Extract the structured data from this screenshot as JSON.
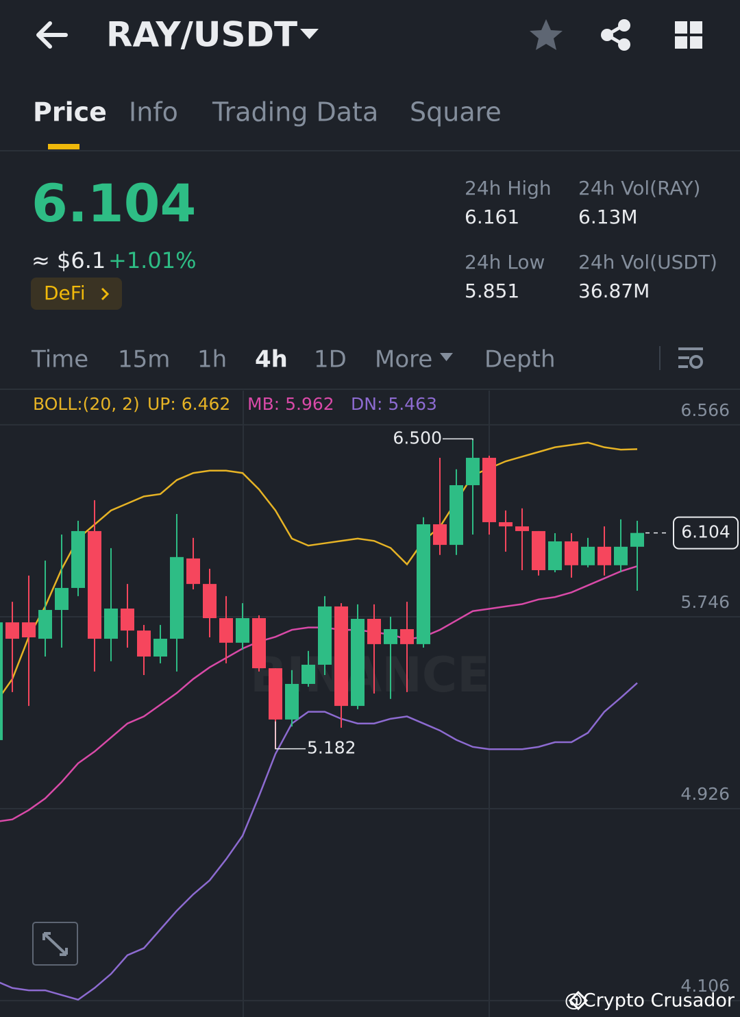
{
  "header": {
    "pair": "RAY/USDT"
  },
  "tabs": [
    "Price",
    "Info",
    "Trading Data",
    "Square"
  ],
  "price": {
    "last": "6.104",
    "fiat": "≈ $6.1",
    "change": "+1.01%",
    "tag": "DeFi"
  },
  "stats": [
    {
      "label": "24h High",
      "value": "6.161"
    },
    {
      "label": "24h Vol(RAY)",
      "value": "6.13M"
    },
    {
      "label": "24h Low",
      "value": "5.851"
    },
    {
      "label": "24h Vol(USDT)",
      "value": "36.87M"
    }
  ],
  "intervals": [
    "Time",
    "15m",
    "1h",
    "4h",
    "1D",
    "More",
    "Depth"
  ],
  "chart_data": {
    "type": "candlestick",
    "indicator": "BOLL:(20, 2)",
    "legend": [
      {
        "label": "UP: 6.462",
        "color": "#e6b325"
      },
      {
        "label": "MB: 5.962",
        "color": "#d94aa8"
      },
      {
        "label": "DN: 5.463",
        "color": "#8d6bd1"
      }
    ],
    "up_color": "#2ebd85",
    "down_color": "#f6465d",
    "ylim": [
      4.036,
      6.712
    ],
    "yticks": [
      6.566,
      5.746,
      4.926,
      4.106
    ],
    "grid": true,
    "candles": {
      "open": [
        5.219,
        5.722,
        5.722,
        5.652,
        5.775,
        5.869,
        6.112,
        5.652,
        5.781,
        5.687,
        5.576,
        5.652,
        5.995,
        5.886,
        5.74,
        5.635,
        5.74,
        5.526,
        5.307,
        5.459,
        5.541,
        5.79,
        5.365,
        5.737,
        5.629,
        5.693,
        5.629,
        6.141,
        6.053,
        6.308,
        6.425,
        6.15,
        6.132,
        6.112,
        5.945,
        6.068,
        5.966,
        6.045,
        5.966,
        6.045
      ],
      "high": [
        5.722,
        5.81,
        5.922,
        5.986,
        6.097,
        6.156,
        6.244,
        6.039,
        5.886,
        5.711,
        5.711,
        6.185,
        6.083,
        5.951,
        5.834,
        5.804,
        5.752,
        5.526,
        5.518,
        5.6,
        5.834,
        5.804,
        5.799,
        5.799,
        5.746,
        5.81,
        6.171,
        6.425,
        6.376,
        6.5,
        6.434,
        6.2,
        6.209,
        6.112,
        6.103,
        6.103,
        6.083,
        6.132,
        6.162,
        6.156
      ],
      "low": [
        5.219,
        5.424,
        5.365,
        5.576,
        5.614,
        5.834,
        5.512,
        5.556,
        5.614,
        5.497,
        5.547,
        5.512,
        5.863,
        5.658,
        5.547,
        5.605,
        5.512,
        5.182,
        5.277,
        5.447,
        5.497,
        5.272,
        5.351,
        5.418,
        5.395,
        5.424,
        5.614,
        6.01,
        6.01,
        6.097,
        6.097,
        6.024,
        5.945,
        5.922,
        5.936,
        5.913,
        5.957,
        5.922,
        5.936,
        5.857
      ],
      "close": [
        5.722,
        5.652,
        5.658,
        5.775,
        5.869,
        6.112,
        5.652,
        5.781,
        5.687,
        5.576,
        5.652,
        6.001,
        5.886,
        5.74,
        5.635,
        5.74,
        5.526,
        5.307,
        5.459,
        5.541,
        5.79,
        5.365,
        5.737,
        5.629,
        5.693,
        5.629,
        6.141,
        6.053,
        6.308,
        6.425,
        6.15,
        6.132,
        6.112,
        5.945,
        6.068,
        5.966,
        6.045,
        5.966,
        6.045,
        6.104
      ]
    },
    "bands": {
      "up": [
        5.38,
        5.48,
        5.66,
        5.79,
        5.95,
        6.08,
        6.14,
        6.2,
        6.23,
        6.26,
        6.27,
        6.33,
        6.36,
        6.37,
        6.37,
        6.36,
        6.29,
        6.2,
        6.08,
        6.05,
        6.06,
        6.07,
        6.08,
        6.07,
        6.04,
        5.97,
        6.07,
        6.13,
        6.24,
        6.35,
        6.38,
        6.41,
        6.43,
        6.45,
        6.47,
        6.48,
        6.49,
        6.47,
        6.46,
        6.462
      ],
      "mb": [
        4.87,
        4.88,
        4.92,
        4.97,
        5.04,
        5.12,
        5.17,
        5.23,
        5.29,
        5.32,
        5.37,
        5.42,
        5.48,
        5.53,
        5.57,
        5.61,
        5.64,
        5.66,
        5.69,
        5.7,
        5.7,
        5.69,
        5.69,
        5.68,
        5.67,
        5.65,
        5.66,
        5.69,
        5.73,
        5.77,
        5.78,
        5.79,
        5.8,
        5.82,
        5.83,
        5.85,
        5.88,
        5.91,
        5.94,
        5.962
      ],
      "dn": [
        4.19,
        4.16,
        4.15,
        4.15,
        4.13,
        4.11,
        4.16,
        4.22,
        4.3,
        4.33,
        4.41,
        4.49,
        4.56,
        4.62,
        4.71,
        4.81,
        4.98,
        5.16,
        5.29,
        5.34,
        5.34,
        5.31,
        5.29,
        5.29,
        5.31,
        5.32,
        5.29,
        5.26,
        5.22,
        5.19,
        5.18,
        5.18,
        5.18,
        5.19,
        5.21,
        5.21,
        5.25,
        5.34,
        5.4,
        5.463
      ]
    },
    "high_label": "6.500",
    "low_label": "5.182",
    "last_label": "6.104",
    "watermark": "BINANCE"
  },
  "credit": "@Crypto Crusador"
}
